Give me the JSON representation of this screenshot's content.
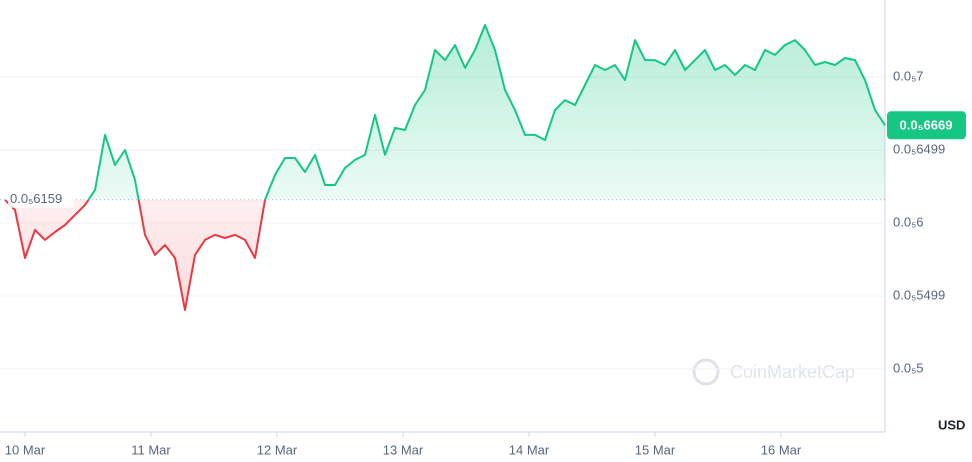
{
  "chart_data": {
    "type": "line",
    "currency": "USD",
    "watermark": "CoinMarketCap",
    "values": [
      6.158e-06,
      6.089e-06,
      5.76e-06,
      5.952e-06,
      5.884e-06,
      5.938e-06,
      5.986e-06,
      6.055e-06,
      6.123e-06,
      6.226e-06,
      6.603e-06,
      6.397e-06,
      6.5e-06,
      6.295e-06,
      5.918e-06,
      5.781e-06,
      5.849e-06,
      5.76e-06,
      5.404e-06,
      5.781e-06,
      5.884e-06,
      5.918e-06,
      5.897e-06,
      5.918e-06,
      5.884e-06,
      5.76e-06,
      6.158e-06,
      6.329e-06,
      6.445e-06,
      6.445e-06,
      6.349e-06,
      6.466e-06,
      6.26e-06,
      6.26e-06,
      6.377e-06,
      6.432e-06,
      6.466e-06,
      6.74e-06,
      6.466e-06,
      6.651e-06,
      6.637e-06,
      6.808e-06,
      6.911e-06,
      7.185e-06,
      7.116e-06,
      7.219e-06,
      7.062e-06,
      7.185e-06,
      7.356e-06,
      7.185e-06,
      6.911e-06,
      6.774e-06,
      6.603e-06,
      6.603e-06,
      6.568e-06,
      6.774e-06,
      6.842e-06,
      6.808e-06,
      6.945e-06,
      7.082e-06,
      7.048e-06,
      7.082e-06,
      6.979e-06,
      7.253e-06,
      7.116e-06,
      7.116e-06,
      7.082e-06,
      7.185e-06,
      7.048e-06,
      7.116e-06,
      7.185e-06,
      7.048e-06,
      7.082e-06,
      7.014e-06,
      7.082e-06,
      7.048e-06,
      7.185e-06,
      7.151e-06,
      7.219e-06,
      7.253e-06,
      7.185e-06,
      7.082e-06,
      7.103e-06,
      7.082e-06,
      7.13e-06,
      7.116e-06,
      6.979e-06,
      6.774e-06,
      6.669e-06
    ],
    "baseline": {
      "value": 6.159e-06,
      "label": "0.0₅6159"
    },
    "current": {
      "value": 6.669e-06,
      "label": "0.0₅6669"
    },
    "up_color": "#16c784",
    "down_color": "#ea3943",
    "xlim": [
      0,
      88
    ],
    "xticks": [
      {
        "value": 2,
        "label": "10 Mar"
      },
      {
        "value": 14.6,
        "label": "11 Mar"
      },
      {
        "value": 27.2,
        "label": "12 Mar"
      },
      {
        "value": 39.8,
        "label": "13 Mar"
      },
      {
        "value": 52.4,
        "label": "14 Mar"
      },
      {
        "value": 65,
        "label": "15 Mar"
      },
      {
        "value": 77.6,
        "label": "16 Mar"
      }
    ],
    "ylim": [
      4.568e-06,
      7.5274e-06
    ],
    "yticks": [
      {
        "value": 7e-06,
        "label": "0.0₅7"
      },
      {
        "value": 6.499e-06,
        "label": "0.0₅6499"
      },
      {
        "value": 6e-06,
        "label": "0.0₅6"
      },
      {
        "value": 5.499e-06,
        "label": "0.0₅5499"
      },
      {
        "value": 5e-06,
        "label": "0.0₅5"
      }
    ],
    "grid": true
  }
}
